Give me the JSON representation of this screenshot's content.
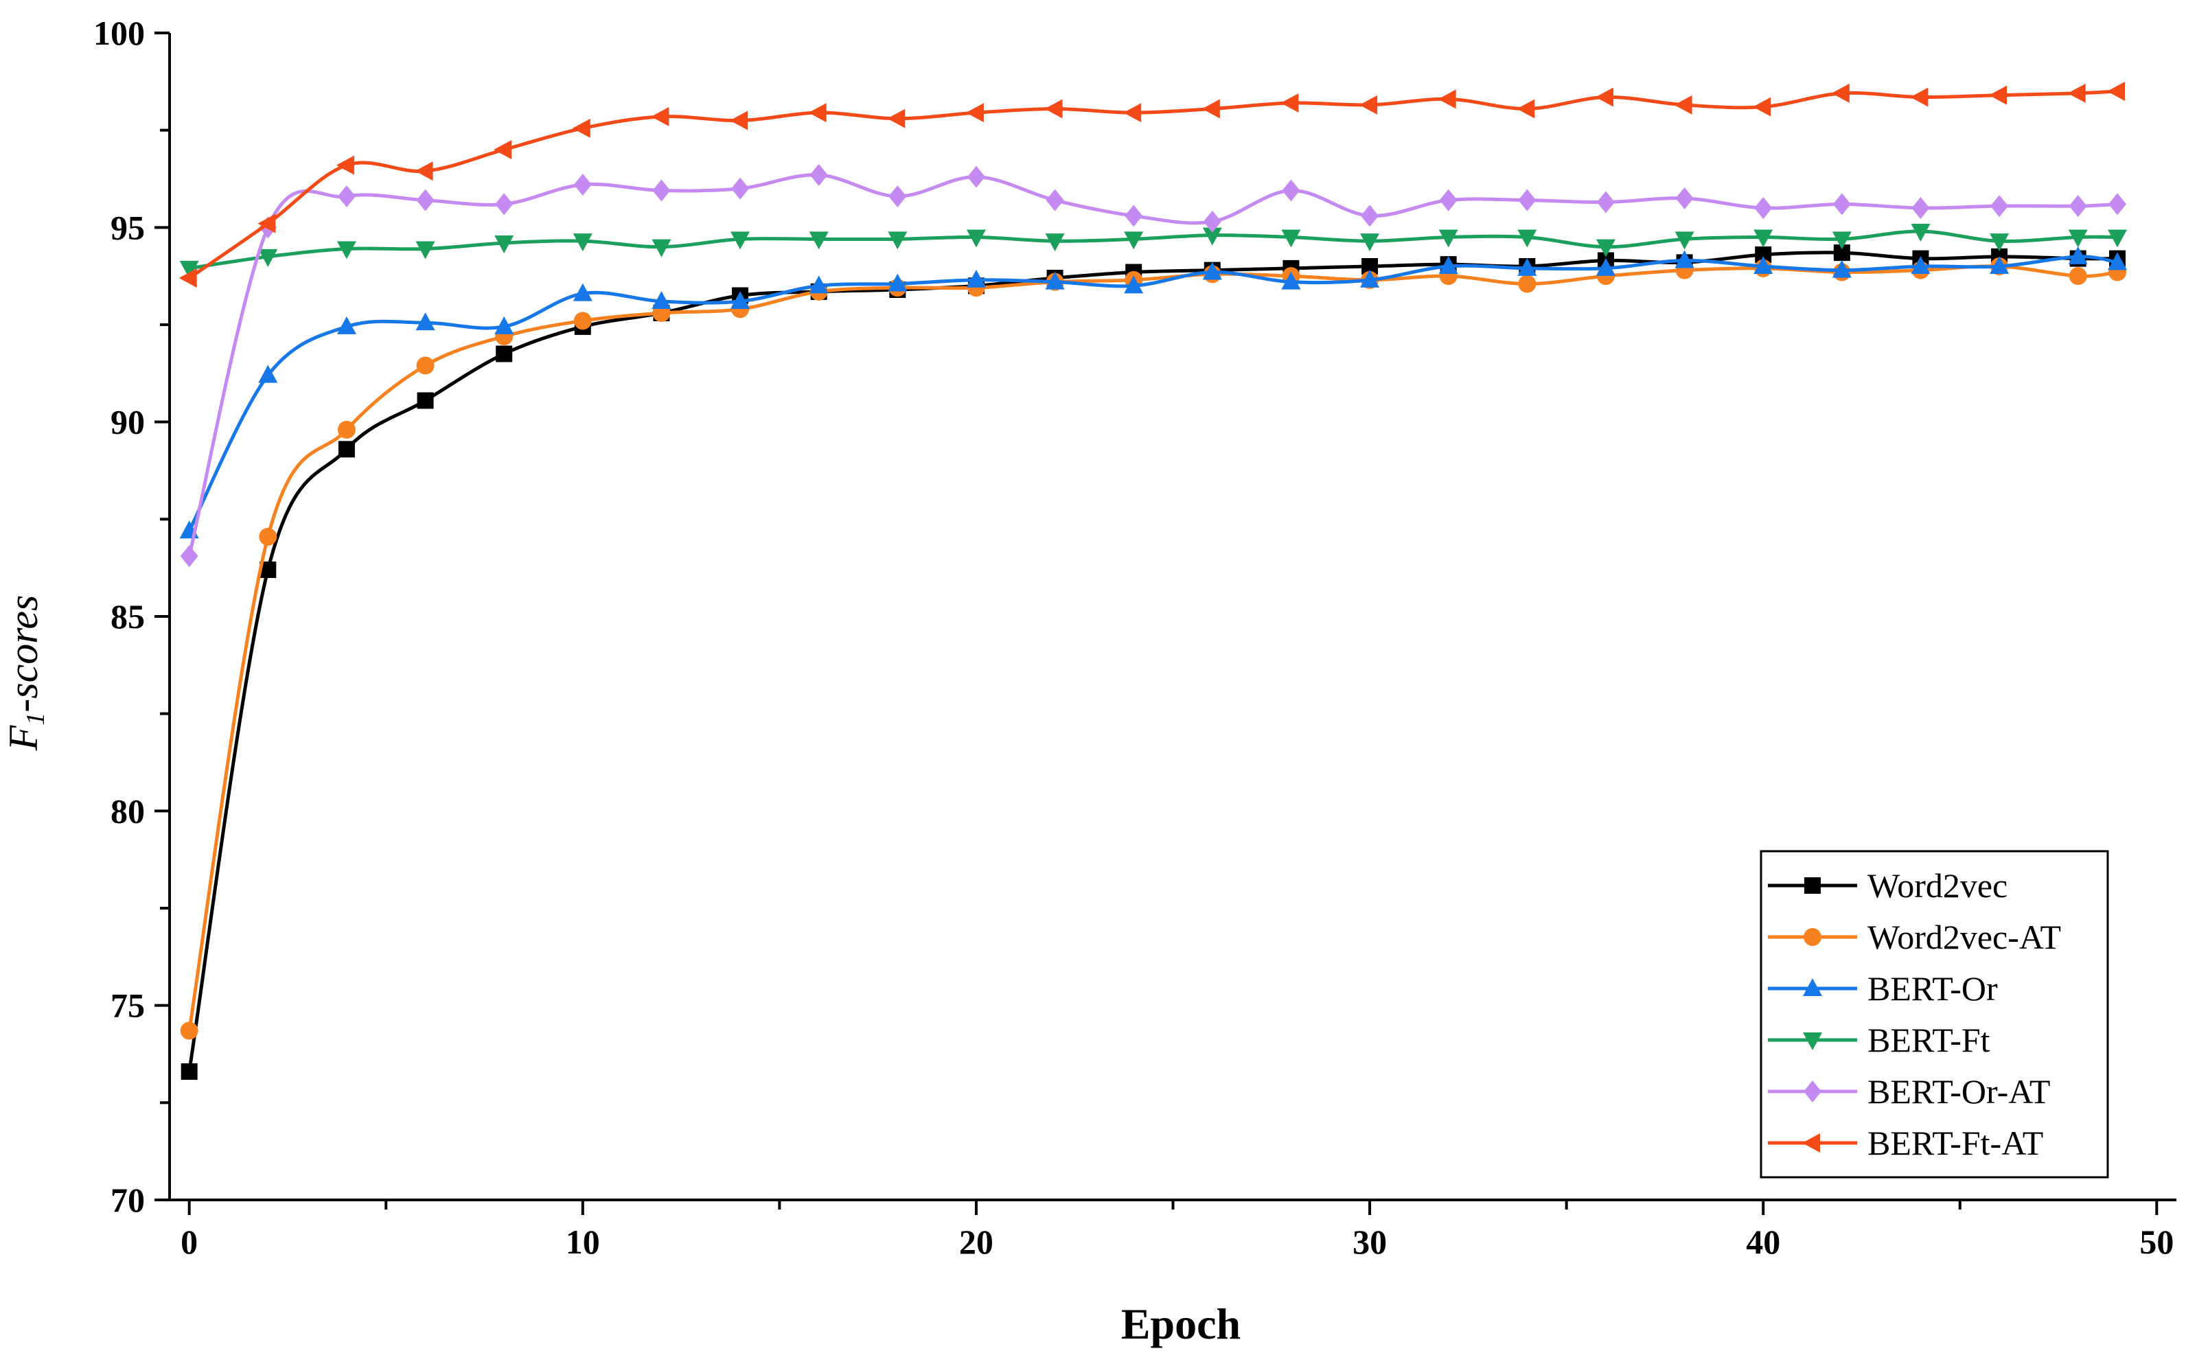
{
  "chart_data": {
    "type": "line",
    "title": "",
    "xlabel": "Epoch",
    "ylabel_main": "F",
    "ylabel_sub": "1",
    "ylabel_rest": "-scores",
    "xlim": [
      -0.5,
      50.5
    ],
    "ylim": [
      70,
      100
    ],
    "xticks": [
      0,
      10,
      20,
      30,
      40,
      50
    ],
    "xtick_labels": [
      "0",
      "10",
      "20",
      "30",
      "40",
      "50"
    ],
    "yticks": [
      70,
      75,
      80,
      85,
      90,
      95,
      100
    ],
    "ytick_labels": [
      "70",
      "75",
      "80",
      "85",
      "90",
      "95",
      "100"
    ],
    "legend_position": "bottom-right",
    "grid": false,
    "series": [
      {
        "name": "Word2vec",
        "color": "#000000",
        "marker": "square",
        "x": [
          0,
          2,
          4,
          6,
          8,
          10,
          12,
          14,
          16,
          18,
          20,
          22,
          24,
          26,
          28,
          30,
          32,
          34,
          36,
          38,
          40,
          42,
          44,
          46,
          48,
          49
        ],
        "y": [
          73.3,
          86.2,
          89.3,
          90.55,
          91.75,
          92.45,
          92.8,
          93.25,
          93.35,
          93.4,
          93.5,
          93.7,
          93.85,
          93.9,
          93.95,
          94.0,
          94.05,
          94.0,
          94.15,
          94.1,
          94.3,
          94.35,
          94.2,
          94.25,
          94.2,
          94.2
        ]
      },
      {
        "name": "Word2vec-AT",
        "color": "#F7811E",
        "marker": "circle",
        "x": [
          0,
          2,
          4,
          6,
          8,
          10,
          12,
          14,
          16,
          18,
          20,
          22,
          24,
          26,
          28,
          30,
          32,
          34,
          36,
          38,
          40,
          42,
          44,
          46,
          48,
          49
        ],
        "y": [
          74.35,
          87.05,
          89.8,
          91.45,
          92.2,
          92.6,
          92.8,
          92.9,
          93.35,
          93.45,
          93.45,
          93.6,
          93.65,
          93.8,
          93.75,
          93.65,
          93.75,
          93.55,
          93.75,
          93.9,
          93.95,
          93.85,
          93.9,
          94.0,
          93.75,
          93.85
        ]
      },
      {
        "name": "BERT-Or",
        "color": "#1577E8",
        "marker": "triangle-up",
        "x": [
          0,
          2,
          4,
          6,
          8,
          10,
          12,
          14,
          16,
          18,
          20,
          22,
          24,
          26,
          28,
          30,
          32,
          34,
          36,
          38,
          40,
          42,
          44,
          46,
          48,
          49
        ],
        "y": [
          87.2,
          91.2,
          92.45,
          92.55,
          92.45,
          93.3,
          93.1,
          93.1,
          93.5,
          93.55,
          93.65,
          93.6,
          93.5,
          93.85,
          93.6,
          93.65,
          94.0,
          93.95,
          93.95,
          94.15,
          94.0,
          93.9,
          94.0,
          94.0,
          94.25,
          94.1
        ]
      },
      {
        "name": "BERT-Ft",
        "color": "#1AA05A",
        "marker": "triangle-down",
        "x": [
          0,
          2,
          4,
          6,
          8,
          10,
          12,
          14,
          16,
          18,
          20,
          22,
          24,
          26,
          28,
          30,
          32,
          34,
          36,
          38,
          40,
          42,
          44,
          46,
          48,
          49
        ],
        "y": [
          93.95,
          94.25,
          94.45,
          94.45,
          94.6,
          94.65,
          94.5,
          94.7,
          94.7,
          94.7,
          94.75,
          94.65,
          94.7,
          94.8,
          94.75,
          94.65,
          94.75,
          94.75,
          94.5,
          94.7,
          94.75,
          94.7,
          94.9,
          94.65,
          94.75,
          94.75
        ]
      },
      {
        "name": "BERT-Or-AT",
        "color": "#C48AF2",
        "marker": "diamond",
        "x": [
          0,
          2,
          4,
          6,
          8,
          10,
          12,
          14,
          16,
          18,
          20,
          22,
          24,
          26,
          28,
          30,
          32,
          34,
          36,
          38,
          40,
          42,
          44,
          46,
          48,
          49
        ],
        "y": [
          86.55,
          95.0,
          95.8,
          95.7,
          95.6,
          96.1,
          95.95,
          96.0,
          96.35,
          95.8,
          96.3,
          95.7,
          95.3,
          95.15,
          95.95,
          95.3,
          95.7,
          95.7,
          95.65,
          95.75,
          95.5,
          95.6,
          95.5,
          95.55,
          95.55,
          95.6
        ]
      },
      {
        "name": "BERT-Ft-AT",
        "color": "#F44A18",
        "marker": "triangle-left",
        "x": [
          0,
          2,
          4,
          6,
          8,
          10,
          12,
          14,
          16,
          18,
          20,
          22,
          24,
          26,
          28,
          30,
          32,
          34,
          36,
          38,
          40,
          42,
          44,
          46,
          48,
          49
        ],
        "y": [
          93.7,
          95.1,
          96.6,
          96.45,
          97.0,
          97.55,
          97.85,
          97.75,
          97.95,
          97.8,
          97.95,
          98.05,
          97.95,
          98.05,
          98.2,
          98.15,
          98.3,
          98.05,
          98.35,
          98.15,
          98.1,
          98.45,
          98.35,
          98.4,
          98.45,
          98.5
        ]
      }
    ]
  }
}
